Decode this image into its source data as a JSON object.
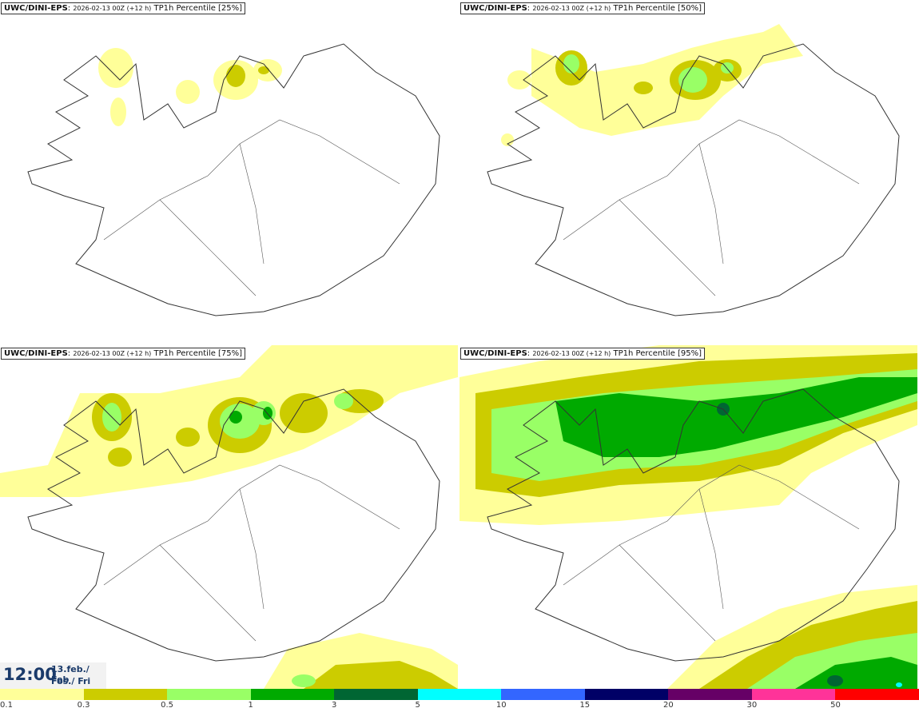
{
  "panels": [
    {
      "model": "UWC/DINI-EPS",
      "run": "2026-02-13 00Z (+12 h)",
      "variable": "TP1h Percentile [25%]"
    },
    {
      "model": "UWC/DINI-EPS",
      "run": "2026-02-13 00Z (+12 h)",
      "variable": "TP1h Percentile [50%]"
    },
    {
      "model": "UWC/DINI-EPS",
      "run": "2026-02-13 00Z (+12 h)",
      "variable": "TP1h Percentile [75%]"
    },
    {
      "model": "UWC/DINI-EPS",
      "run": "2026-02-13 00Z (+12 h)",
      "variable": "TP1h Percentile [95%]"
    }
  ],
  "valid_time": {
    "hour": "12:00",
    "date_line1": "13.feb./ Feb",
    "date_line2": "Fös./ Fri"
  },
  "colorbar": {
    "colors": [
      "#ffff99",
      "#cccc00",
      "#99ff66",
      "#00aa00",
      "#006633",
      "#00ffff",
      "#3366ff",
      "#000066",
      "#660066",
      "#ff3399",
      "#ff0000"
    ],
    "labels": [
      "0.1",
      "0.3",
      "0.5",
      "1",
      "3",
      "5",
      "10",
      "15",
      "20",
      "30",
      "50"
    ]
  }
}
